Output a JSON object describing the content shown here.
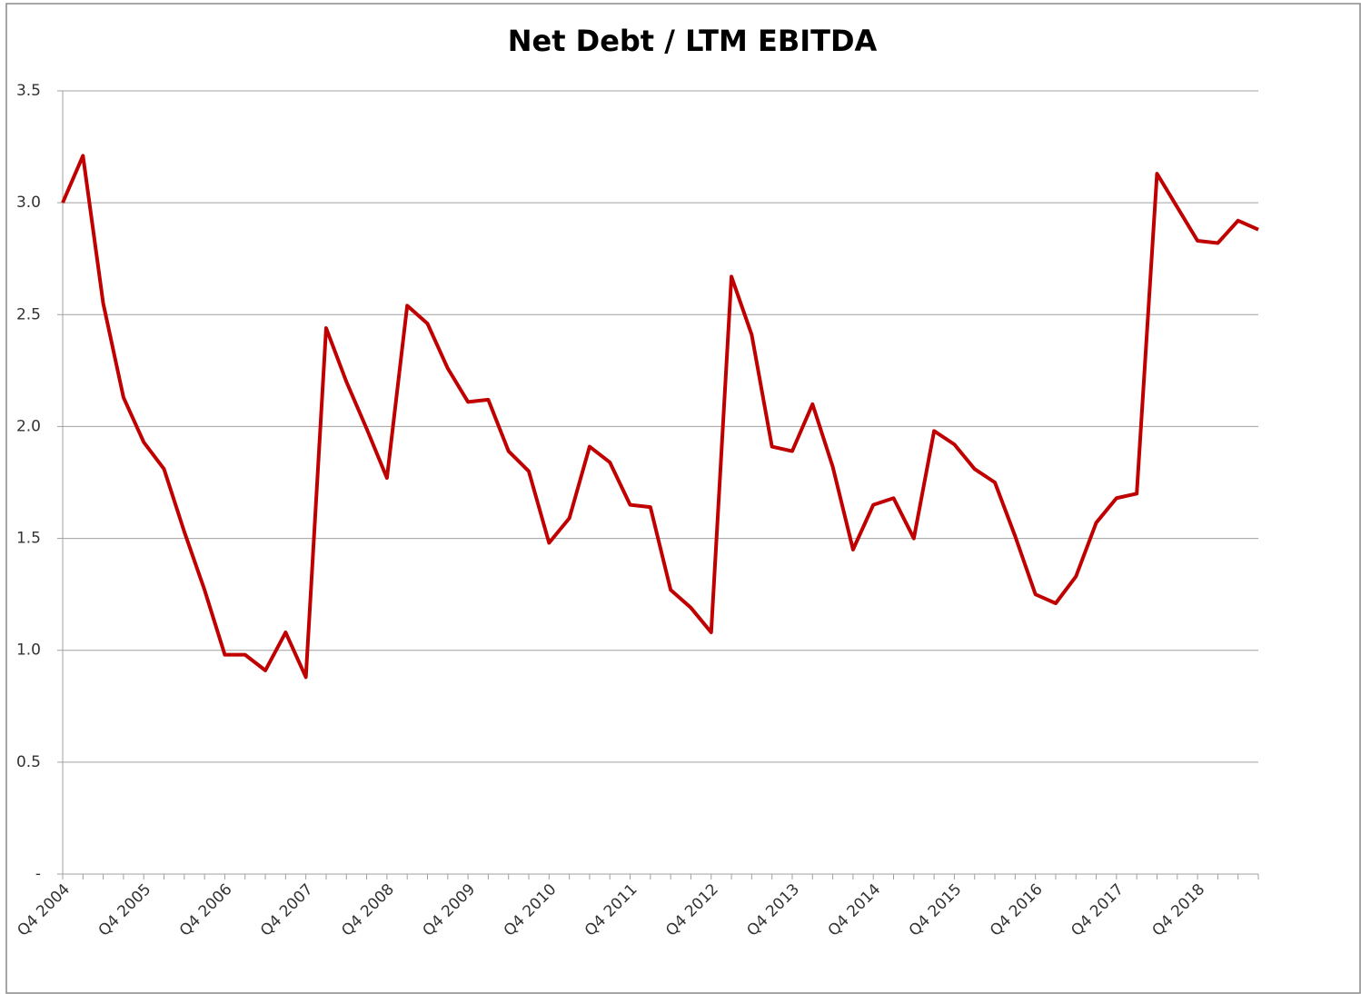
{
  "chart_data": {
    "type": "line",
    "title": "Net Debt / LTM EBITDA",
    "categories": [
      "Q4 2004",
      null,
      null,
      null,
      "Q4 2005",
      null,
      null,
      null,
      "Q4 2006",
      null,
      null,
      null,
      "Q4 2007",
      null,
      null,
      null,
      "Q4 2008",
      null,
      null,
      null,
      "Q4 2009",
      null,
      null,
      null,
      "Q4 2010",
      null,
      null,
      null,
      "Q4 2011",
      null,
      null,
      null,
      "Q4 2012",
      null,
      null,
      null,
      "Q4 2013",
      null,
      null,
      null,
      "Q4 2014",
      null,
      null,
      null,
      "Q4 2015",
      null,
      null,
      null,
      "Q4 2016",
      null,
      null,
      null,
      "Q4 2017",
      null,
      null,
      null,
      "Q4 2018",
      null,
      null,
      null
    ],
    "series": [
      {
        "name": "Net Debt / LTM EBITDA",
        "color": "#c00000",
        "values": [
          3.0,
          3.21,
          2.55,
          2.13,
          1.93,
          1.81,
          1.53,
          1.27,
          0.98,
          0.98,
          0.91,
          1.08,
          0.88,
          2.44,
          2.2,
          1.99,
          1.77,
          2.54,
          2.46,
          2.26,
          2.11,
          2.12,
          1.89,
          1.8,
          1.48,
          1.59,
          1.91,
          1.84,
          1.65,
          1.64,
          1.27,
          1.19,
          1.08,
          2.67,
          2.41,
          1.91,
          1.89,
          2.1,
          1.82,
          1.45,
          1.65,
          1.68,
          1.5,
          1.98,
          1.92,
          1.81,
          1.75,
          1.51,
          1.25,
          1.21,
          1.33,
          1.57,
          1.68,
          1.7,
          3.13,
          2.98,
          2.83,
          2.82,
          2.92,
          2.88
        ]
      }
    ],
    "ylim": [
      0,
      3.5
    ],
    "yticks": [
      {
        "value": 0,
        "label": "-"
      },
      0.5,
      {
        "value": 1,
        "label": "1.0"
      },
      1.5,
      {
        "value": 2,
        "label": "2.0"
      },
      2.5,
      {
        "value": 3,
        "label": "3.0"
      },
      3.5
    ],
    "grid": true
  }
}
